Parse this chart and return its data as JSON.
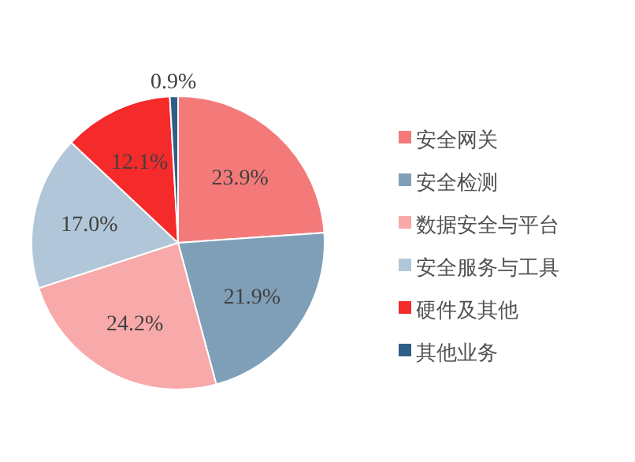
{
  "chart_data": {
    "type": "pie",
    "categories": [
      "安全网关",
      "安全检测",
      "数据安全与平台",
      "安全服务与工具",
      "硬件及其他",
      "其他业务"
    ],
    "values": [
      23.9,
      21.9,
      24.2,
      17.0,
      12.1,
      0.9
    ],
    "value_labels": [
      "23.9%",
      "21.9%",
      "24.2%",
      "17.0%",
      "12.1%",
      "0.9%"
    ],
    "colors": [
      "#f47a7a",
      "#7f9fb8",
      "#f8a9a9",
      "#b1c6d8",
      "#f52a2a",
      "#2f5f86"
    ],
    "legend": "right"
  }
}
